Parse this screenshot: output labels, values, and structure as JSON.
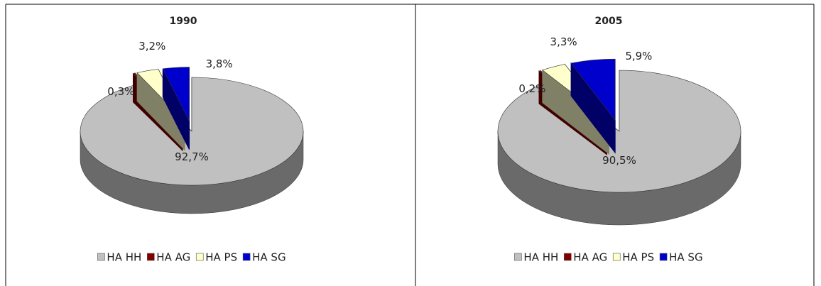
{
  "chart_data": [
    {
      "type": "pie",
      "title": "1990",
      "categories": [
        "HA HH",
        "HA AG",
        "HA PS",
        "HA SG"
      ],
      "colors": [
        "#c0c0c0",
        "#800000",
        "#ffffcc",
        "#0000cc"
      ],
      "values": [
        92.7,
        0.3,
        3.2,
        3.8
      ],
      "value_labels": [
        "92,7%",
        "0,3%",
        "3,2%",
        "3,8%"
      ],
      "legend": "bottom"
    },
    {
      "type": "pie",
      "title": "2005",
      "categories": [
        "HA HH",
        "HA AG",
        "HA PS",
        "HA SG"
      ],
      "colors": [
        "#c0c0c0",
        "#800000",
        "#ffffcc",
        "#0000cc"
      ],
      "values": [
        90.5,
        0.2,
        3.3,
        5.9
      ],
      "value_labels": [
        "90,5%",
        "0,2%",
        "3,3%",
        "5,9%"
      ],
      "legend": "bottom"
    }
  ]
}
